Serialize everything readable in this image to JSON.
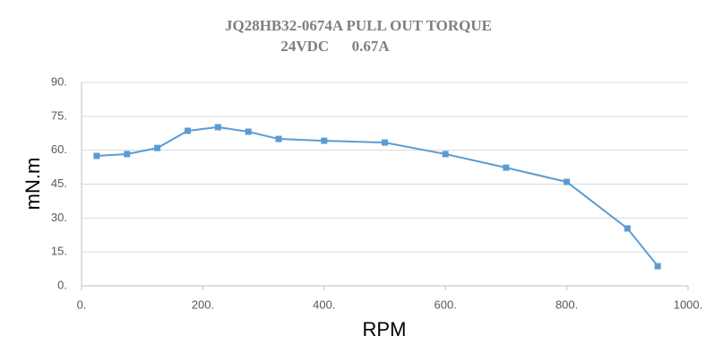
{
  "chart_data": {
    "type": "line",
    "title": "JQ28HB32-0674A PULL OUT TORQUE",
    "subtitle": "24VDC      0.67A",
    "x_label": "RPM",
    "y_label": "mN.m",
    "x": [
      25,
      75,
      125,
      175,
      225,
      275,
      325,
      400,
      500,
      600,
      700,
      800,
      900,
      950
    ],
    "series": [
      {
        "name": "Pull out torque",
        "color": "#5b9bd5",
        "values": [
          57.5,
          58.3,
          61,
          68.6,
          70.2,
          68.2,
          65,
          64.2,
          63.4,
          58.3,
          52.3,
          46,
          25.4,
          8.7
        ]
      }
    ],
    "xlim": [
      0,
      1000
    ],
    "xticks": [
      {
        "value": 0,
        "label": "0."
      },
      {
        "value": 200,
        "label": "200."
      },
      {
        "value": 400,
        "label": "400."
      },
      {
        "value": 600,
        "label": "600."
      },
      {
        "value": 800,
        "label": "800."
      },
      {
        "value": 1000,
        "label": "1000."
      }
    ],
    "ylim": [
      0,
      90
    ],
    "yticks": [
      {
        "value": 0,
        "label": "0."
      },
      {
        "value": 15,
        "label": "15."
      },
      {
        "value": 30,
        "label": "30."
      },
      {
        "value": 45,
        "label": "45."
      },
      {
        "value": 60,
        "label": "60."
      },
      {
        "value": 75,
        "label": "75."
      },
      {
        "value": 90,
        "label": "90."
      }
    ],
    "grid": true
  }
}
